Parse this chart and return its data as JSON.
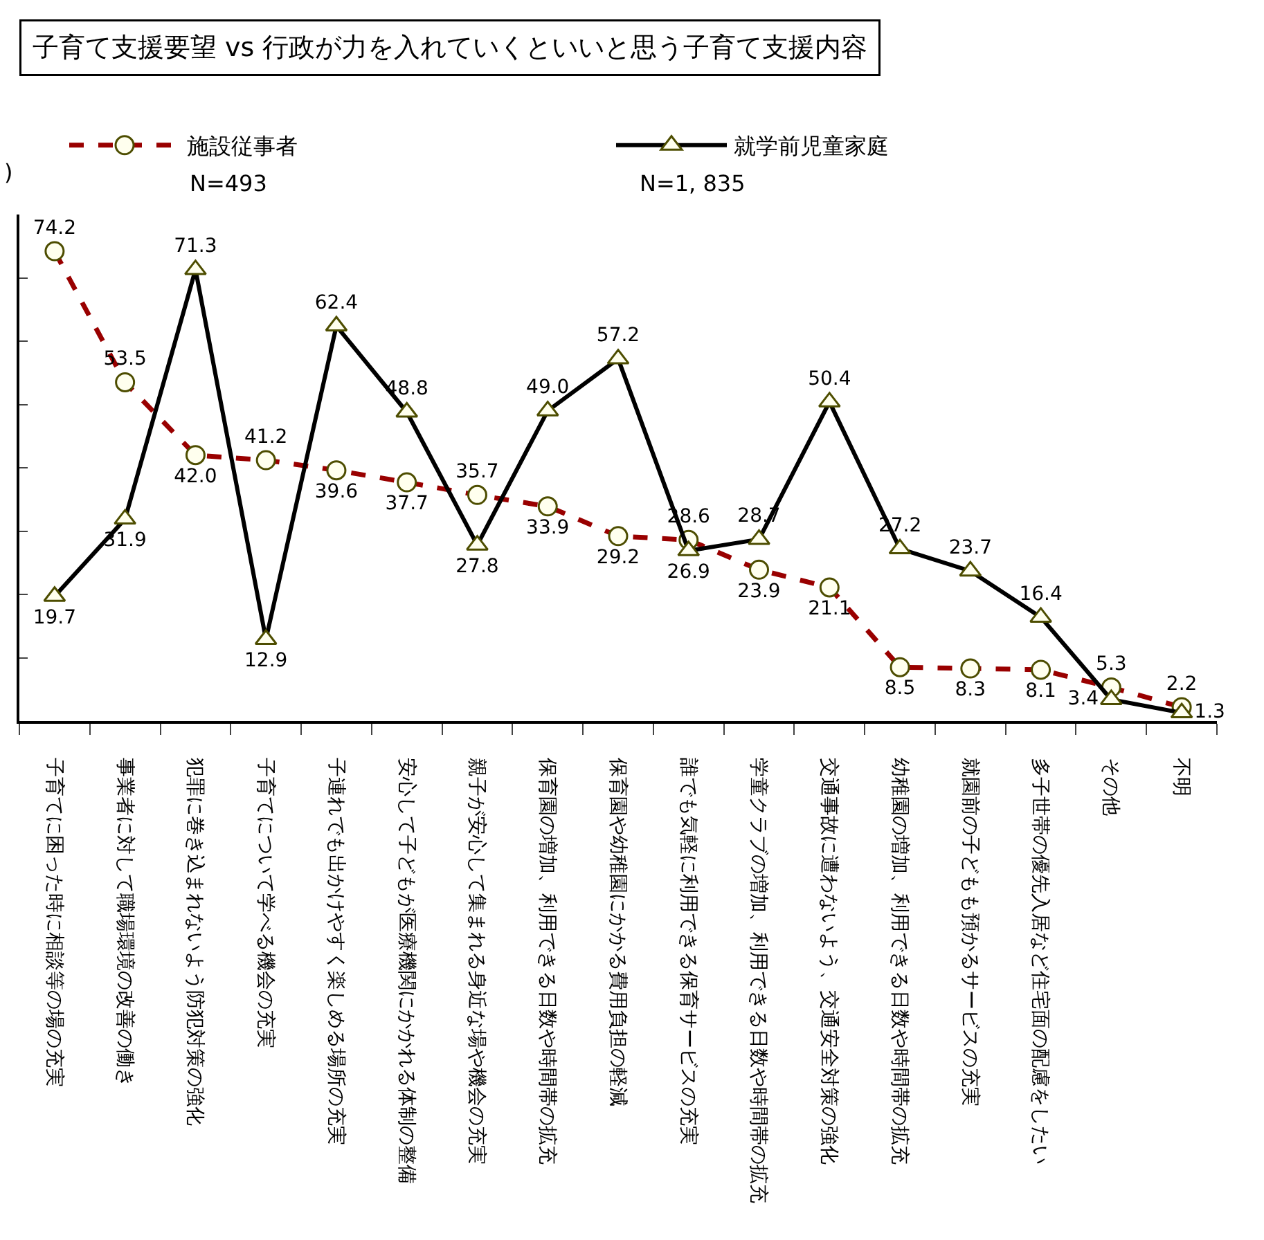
{
  "chart_data": {
    "type": "line",
    "title": "子育て支援要望 vs 行政が力を入れていくといいと思う子育て支援内容",
    "annotations": [
      ")",
      "N=493",
      "N=1, 835"
    ],
    "categories": [
      "子育てに困った時に相談等の場の充実",
      "事業者に対して職場環境の改善の働き",
      "犯罪に巻き込まれないよう防犯対策の強化",
      "子育てについて学べる機会の充実",
      "子連れでも出かけやすく楽しめる場所の充実",
      "安心して子どもが医療機関にかかれる体制の整備",
      "親子が安心して集まれる身近な場や機会の充実",
      "保育園の増加、利用できる日数や時間帯の拡充",
      "保育園や幼稚園にかかる費用負担の軽減",
      "誰でも気軽に利用できる保育サービスの充実",
      "学童クラブの増加、利用できる日数や時間帯の拡充",
      "交通事故に遭わないよう、交通安全対策の強化",
      "幼稚園の増加、利用できる日数や時間帯の拡充",
      "就園前の子どもも預かるサービスの充実",
      "多子世帯の優先入居など住宅面の配慮をしたい",
      "その他",
      "不明"
    ],
    "series": [
      {
        "name": "施設従事者",
        "color": "#990000",
        "line_style": "dashed",
        "marker": "circle",
        "values": [
          74.2,
          53.5,
          42.0,
          41.2,
          39.6,
          37.7,
          35.7,
          33.9,
          29.2,
          28.6,
          23.9,
          21.1,
          8.5,
          8.3,
          8.1,
          5.3,
          2.2
        ],
        "value_labels": [
          "74.2",
          "53.5",
          "42.0",
          "41.2",
          "39.6",
          "37.7",
          "35.7",
          "33.9",
          "29.2",
          "28.6",
          "23.9",
          "21.1",
          "8.5",
          "8.3",
          "8.1",
          "5.3",
          "2.2"
        ]
      },
      {
        "name": "就学前児童家庭",
        "color": "#000000",
        "line_style": "solid",
        "marker": "triangle",
        "values": [
          19.7,
          31.9,
          71.3,
          12.9,
          62.4,
          48.8,
          27.8,
          49.0,
          57.2,
          26.9,
          28.7,
          50.4,
          27.2,
          23.7,
          16.4,
          3.4,
          1.3
        ],
        "value_labels": [
          "19.7",
          "31.9",
          "71.3",
          "12.9",
          "62.4",
          "48.8",
          "27.8",
          "49.0",
          "57.2",
          "26.9",
          "28.7",
          "50.4",
          "27.2",
          "23.7",
          "16.4",
          "3.4",
          "1.3"
        ]
      }
    ],
    "ylim": [
      0,
      80
    ],
    "yticks": [
      {
        "value": 0,
        "label": null
      },
      {
        "value": 10,
        "label": null
      },
      {
        "value": 20,
        "label": null
      },
      {
        "value": 30,
        "label": null
      },
      {
        "value": 40,
        "label": null
      },
      {
        "value": 50,
        "label": null
      },
      {
        "value": 60,
        "label": null
      },
      {
        "value": 70,
        "label": null
      }
    ],
    "tick_labels": "x",
    "legend": "top"
  }
}
